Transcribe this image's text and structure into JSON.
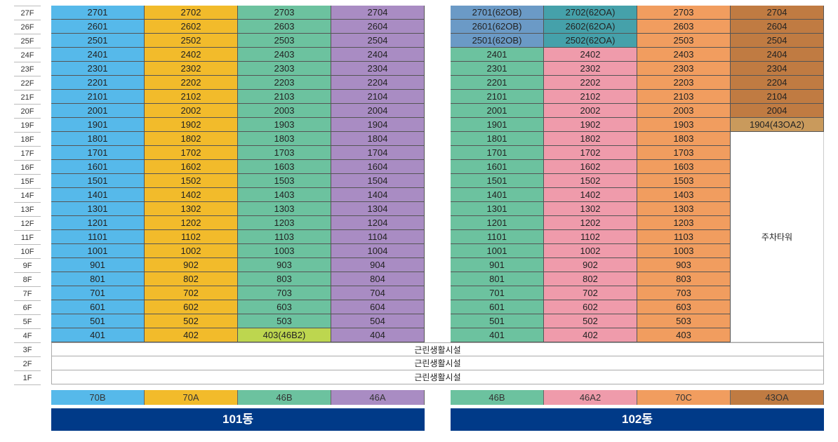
{
  "floors": [
    "27F",
    "26F",
    "25F",
    "24F",
    "23F",
    "22F",
    "21F",
    "20F",
    "19F",
    "18F",
    "17F",
    "16F",
    "15F",
    "14F",
    "13F",
    "12F",
    "11F",
    "10F",
    "9F",
    "8F",
    "7F",
    "6F",
    "5F",
    "4F",
    "3F",
    "2F",
    "1F"
  ],
  "colors": {
    "70B": "#56b9ea",
    "70A": "#f2bb2b",
    "46B": "#6cc29f",
    "46A": "#a98cc3",
    "46B2": "#bdd64f",
    "62OB": "#6b9ac6",
    "62OA": "#45a1aa",
    "46A2": "#ef9bab",
    "70C": "#f19d5f",
    "43OA": "#c07b42",
    "43OA2": "#c99a5c"
  },
  "amenity_label": "근린생활시설",
  "parking_label": "주차타워",
  "buildings": [
    {
      "name": "101동",
      "types": [
        "70B",
        "70A",
        "46B",
        "46A"
      ],
      "overrides": {
        "23-2": "46B2"
      },
      "rows": [
        [
          "2701",
          "2702",
          "2703",
          "2704"
        ],
        [
          "2601",
          "2602",
          "2603",
          "2604"
        ],
        [
          "2501",
          "2502",
          "2503",
          "2504"
        ],
        [
          "2401",
          "2402",
          "2403",
          "2404"
        ],
        [
          "2301",
          "2302",
          "2303",
          "2304"
        ],
        [
          "2201",
          "2202",
          "2203",
          "2204"
        ],
        [
          "2101",
          "2102",
          "2103",
          "2104"
        ],
        [
          "2001",
          "2002",
          "2003",
          "2004"
        ],
        [
          "1901",
          "1902",
          "1903",
          "1904"
        ],
        [
          "1801",
          "1802",
          "1803",
          "1804"
        ],
        [
          "1701",
          "1702",
          "1703",
          "1704"
        ],
        [
          "1601",
          "1602",
          "1603",
          "1604"
        ],
        [
          "1501",
          "1502",
          "1503",
          "1504"
        ],
        [
          "1401",
          "1402",
          "1403",
          "1404"
        ],
        [
          "1301",
          "1302",
          "1303",
          "1304"
        ],
        [
          "1201",
          "1202",
          "1203",
          "1204"
        ],
        [
          "1101",
          "1102",
          "1103",
          "1104"
        ],
        [
          "1001",
          "1002",
          "1003",
          "1004"
        ],
        [
          "901",
          "902",
          "903",
          "904"
        ],
        [
          "801",
          "802",
          "803",
          "804"
        ],
        [
          "701",
          "702",
          "703",
          "704"
        ],
        [
          "601",
          "602",
          "603",
          "604"
        ],
        [
          "501",
          "502",
          "503",
          "504"
        ],
        [
          "401",
          "402",
          "403(46B2)",
          "404"
        ]
      ]
    },
    {
      "name": "102동",
      "types": [
        "46B",
        "46A2",
        "70C",
        "43OA"
      ],
      "overrides": {
        "0-0": "62OB",
        "1-0": "62OB",
        "2-0": "62OB",
        "0-1": "62OA",
        "1-1": "62OA",
        "2-1": "62OA",
        "8-3": "43OA2"
      },
      "rows": [
        [
          "2701(62OB)",
          "2702(62OA)",
          "2703",
          "2704"
        ],
        [
          "2601(62OB)",
          "2602(62OA)",
          "2603",
          "2604"
        ],
        [
          "2501(62OB)",
          "2502(62OA)",
          "2503",
          "2504"
        ],
        [
          "2401",
          "2402",
          "2403",
          "2404"
        ],
        [
          "2301",
          "2302",
          "2303",
          "2304"
        ],
        [
          "2201",
          "2202",
          "2203",
          "2204"
        ],
        [
          "2101",
          "2102",
          "2103",
          "2104"
        ],
        [
          "2001",
          "2002",
          "2003",
          "2004"
        ],
        [
          "1901",
          "1902",
          "1903",
          "1904(43OA2)"
        ],
        [
          "1801",
          "1802",
          "1803",
          null
        ],
        [
          "1701",
          "1702",
          "1703",
          null
        ],
        [
          "1601",
          "1602",
          "1603",
          null
        ],
        [
          "1501",
          "1502",
          "1503",
          null
        ],
        [
          "1401",
          "1402",
          "1403",
          null
        ],
        [
          "1301",
          "1302",
          "1303",
          null
        ],
        [
          "1201",
          "1202",
          "1203",
          null
        ],
        [
          "1101",
          "1102",
          "1103",
          null
        ],
        [
          "1001",
          "1002",
          "1003",
          null
        ],
        [
          "901",
          "902",
          "903",
          null
        ],
        [
          "801",
          "802",
          "803",
          null
        ],
        [
          "701",
          "702",
          "703",
          null
        ],
        [
          "601",
          "602",
          "603",
          null
        ],
        [
          "501",
          "502",
          "503",
          null
        ],
        [
          "401",
          "402",
          "403",
          null
        ]
      ]
    }
  ]
}
